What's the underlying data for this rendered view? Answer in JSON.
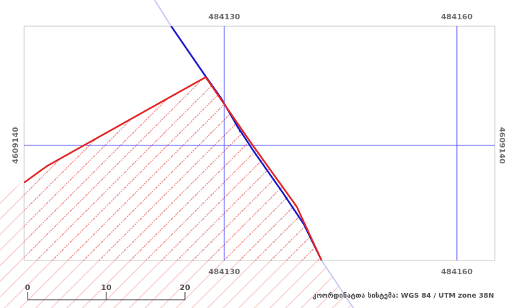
{
  "grid": {
    "top_left_label": "484130",
    "top_right_label": "484160",
    "bottom_left_label": "484130",
    "bottom_right_label": "484160",
    "left_label": "4609140",
    "right_label": "4609140"
  },
  "scale_bar": {
    "tick_0": "0",
    "tick_1": "10",
    "tick_2": "20"
  },
  "crs_text": "კოორდინატთა სისტემა: WGS 84 / UTM zone 38N",
  "colors": {
    "grid_line": "#4d4dff",
    "frame": "#c8c8c8",
    "parcel_outline": "#e32626",
    "parcel_hatch": "#f08c8c",
    "boundary_line": "#1a1acc",
    "boundary_faded": "#c8c8f5"
  }
}
